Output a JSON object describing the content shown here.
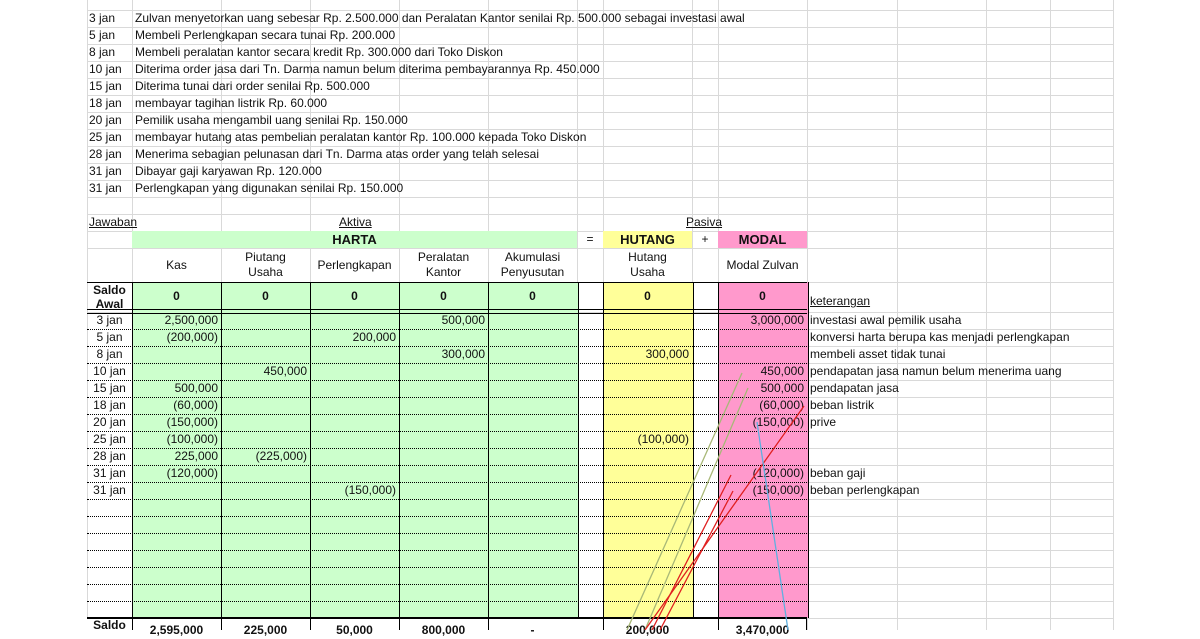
{
  "problem": [
    {
      "date": "3 jan",
      "text": "Zulvan menyetorkan uang sebesar Rp. 2.500.000 dan Peralatan Kantor senilai Rp. 500.000 sebagai investasi awal"
    },
    {
      "date": "5 jan",
      "text": "Membeli Perlengkapan secara tunai Rp. 200.000"
    },
    {
      "date": "8 jan",
      "text": "Membeli peralatan kantor secara kredit Rp. 300.000 dari Toko Diskon"
    },
    {
      "date": "10 jan",
      "text": "Diterima order jasa dari Tn. Darma namun belum diterima pembayarannya Rp. 450.000"
    },
    {
      "date": "15 jan",
      "text": "Diterima  tunai dari order senilai Rp. 500.000"
    },
    {
      "date": "18 jan",
      "text": "membayar tagihan listrik Rp. 60.000"
    },
    {
      "date": "20 jan",
      "text": "Pemilik usaha mengambil uang senilai Rp. 150.000"
    },
    {
      "date": "25 jan",
      "text": "membayar hutang atas pembelian peralatan kantor Rp. 100.000 kepada Toko Diskon"
    },
    {
      "date": "28 jan",
      "text": "Menerima sebagian pelunasan dari Tn. Darma atas order yang telah selesai"
    },
    {
      "date": "31 jan",
      "text": "Dibayar gaji karyawan Rp. 120.000"
    },
    {
      "date": "31 jan",
      "text": "Perlengkapan yang digunakan senilai Rp. 150.000"
    }
  ],
  "labels": {
    "jawaban": "Jawaban",
    "aktiva": "Aktiva",
    "pasiva": "Pasiva",
    "harta": "HARTA",
    "eq": "=",
    "hutang": "HUTANG",
    "plus": "+",
    "modal": "MODAL",
    "saldo_awal": "Saldo Awal",
    "saldo_akhir": "Saldo",
    "keterangan": "keterangan"
  },
  "columns": [
    "Kas",
    "Piutang Usaha",
    "Perlengkapan",
    "Peralatan Kantor",
    "Akumulasi Penyusutan",
    "Hutang Usaha",
    "Modal Zulvan"
  ],
  "saldo_awal": [
    "0",
    "0",
    "0",
    "0",
    "0",
    "0",
    "0"
  ],
  "rows": [
    {
      "date": "3 jan",
      "v": [
        "2,500,000",
        "",
        "",
        "500,000",
        "",
        "",
        "3,000,000"
      ],
      "ket": "investasi awal pemilik usaha"
    },
    {
      "date": "5 jan",
      "v": [
        "(200,000)",
        "",
        "200,000",
        "",
        "",
        "",
        ""
      ],
      "ket": "konversi harta berupa kas menjadi perlengkapan"
    },
    {
      "date": "8 jan",
      "v": [
        "",
        "",
        "",
        "300,000",
        "",
        "300,000",
        ""
      ],
      "ket": "membeli asset tidak tunai"
    },
    {
      "date": "10 jan",
      "v": [
        "",
        "450,000",
        "",
        "",
        "",
        "",
        "450,000"
      ],
      "ket": "pendapatan jasa namun belum menerima uang"
    },
    {
      "date": "15 jan",
      "v": [
        "500,000",
        "",
        "",
        "",
        "",
        "",
        "500,000"
      ],
      "ket": "pendapatan jasa"
    },
    {
      "date": "18 jan",
      "v": [
        "(60,000)",
        "",
        "",
        "",
        "",
        "",
        "(60,000)"
      ],
      "ket": "beban listrik"
    },
    {
      "date": "20 jan",
      "v": [
        "(150,000)",
        "",
        "",
        "",
        "",
        "",
        "(150,000)"
      ],
      "ket": "prive"
    },
    {
      "date": "25 jan",
      "v": [
        "(100,000)",
        "",
        "",
        "",
        "",
        "(100,000)",
        ""
      ],
      "ket": ""
    },
    {
      "date": "28 jan",
      "v": [
        "225,000",
        "(225,000)",
        "",
        "",
        "",
        "",
        ""
      ],
      "ket": ""
    },
    {
      "date": "31 jan",
      "v": [
        "(120,000)",
        "",
        "",
        "",
        "",
        "",
        "(120,000)"
      ],
      "ket": "beban gaji"
    },
    {
      "date": "31 jan",
      "v": [
        "",
        "",
        "(150,000)",
        "",
        "",
        "",
        "(150,000)"
      ],
      "ket": "beban perlengkapan"
    }
  ],
  "saldo_akhir": [
    "2,595,000",
    "225,000",
    "50,000",
    "800,000",
    "-",
    "200,000",
    "3,470,000"
  ],
  "colors": {
    "green": "#ccffcc",
    "yellow": "#ffff99",
    "pink": "#ff99cc",
    "line_green": "#a8b878",
    "line_red": "#e02020",
    "line_blue": "#60b0e0"
  }
}
